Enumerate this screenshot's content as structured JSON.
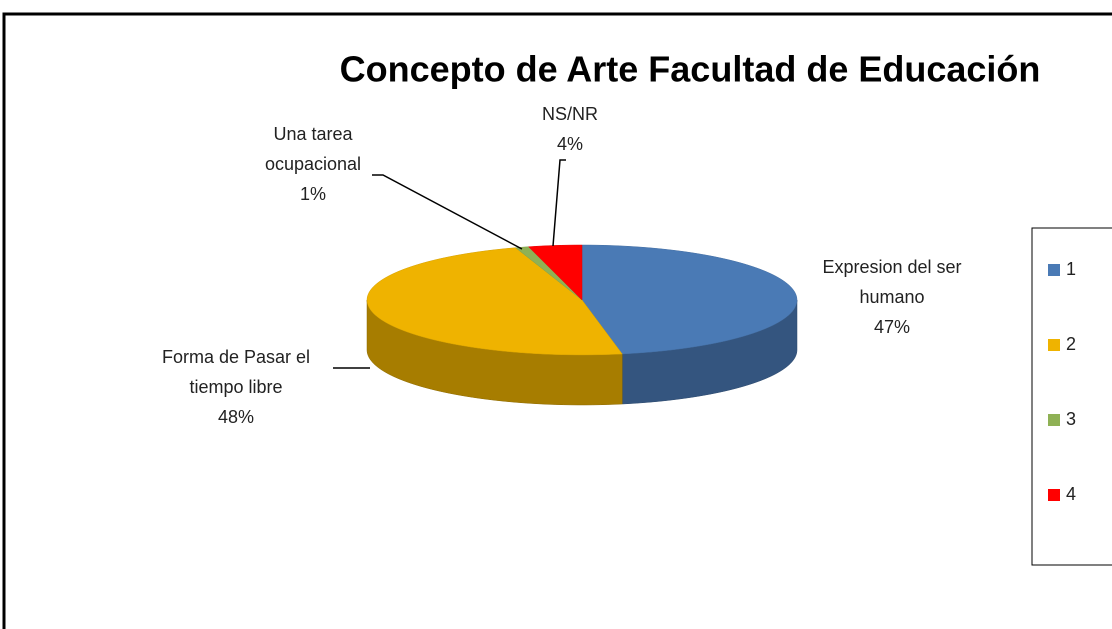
{
  "chart_data": {
    "type": "pie",
    "title": "Concepto de Arte Facultad de Educación",
    "categories": [
      "Expresion del ser humano",
      "Forma de Pasar el tiempo libre",
      "Una tarea ocupacional",
      "NS/NR"
    ],
    "values": [
      47,
      48,
      1,
      4
    ],
    "value_labels": [
      "47%",
      "48%",
      "1%",
      "4%"
    ],
    "colors": [
      "#4a7ab5",
      "#efb300",
      "#8fb155",
      "#ff0000"
    ],
    "legend_labels": [
      1,
      2,
      3,
      4
    ]
  }
}
